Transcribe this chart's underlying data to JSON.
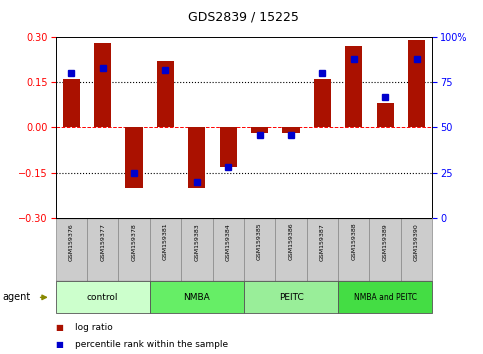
{
  "title": "GDS2839 / 15225",
  "samples": [
    "GSM159376",
    "GSM159377",
    "GSM159378",
    "GSM159381",
    "GSM159383",
    "GSM159384",
    "GSM159385",
    "GSM159386",
    "GSM159387",
    "GSM159388",
    "GSM159389",
    "GSM159390"
  ],
  "log_ratio": [
    0.16,
    0.28,
    -0.2,
    0.22,
    -0.2,
    -0.13,
    -0.02,
    -0.02,
    0.16,
    0.27,
    0.08,
    0.29
  ],
  "percentile": [
    80,
    83,
    25,
    82,
    20,
    28,
    46,
    46,
    80,
    88,
    67,
    88
  ],
  "groups": [
    {
      "label": "control",
      "start": 0,
      "end": 2,
      "color": "#ccffcc"
    },
    {
      "label": "NMBA",
      "start": 3,
      "end": 5,
      "color": "#66ee66"
    },
    {
      "label": "PEITC",
      "start": 6,
      "end": 8,
      "color": "#99ee99"
    },
    {
      "label": "NMBA and PEITC",
      "start": 9,
      "end": 11,
      "color": "#44dd44"
    }
  ],
  "bar_color": "#aa1100",
  "dot_color": "#0000cc",
  "ylim_left": [
    -0.3,
    0.3
  ],
  "ylim_right": [
    0,
    100
  ],
  "yticks_left": [
    -0.3,
    -0.15,
    0.0,
    0.15,
    0.3
  ],
  "yticks_right": [
    0,
    25,
    50,
    75,
    100
  ],
  "background_color": "#ffffff",
  "plot_bg": "#ffffff",
  "legend_log_ratio": "log ratio",
  "legend_percentile": "percentile rank within the sample",
  "agent_label": "agent"
}
